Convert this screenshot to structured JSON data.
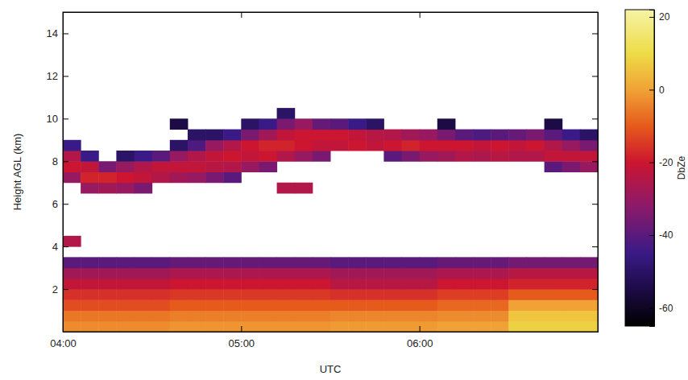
{
  "chart_data": {
    "type": "heatmap",
    "xlabel": "UTC",
    "ylabel": "Height AGL (km)",
    "xlim": [
      4,
      7
    ],
    "ylim": [
      0,
      15
    ],
    "xticks": [
      {
        "value": 4,
        "label": "04:00"
      },
      {
        "value": 5,
        "label": "05:00"
      },
      {
        "value": 6,
        "label": "06:00"
      }
    ],
    "yticks": [
      2,
      4,
      6,
      8,
      10,
      12,
      14
    ],
    "x_edges": [
      4,
      4.1,
      4.2,
      4.3,
      4.4,
      4.5,
      4.6,
      4.7,
      4.8,
      4.9,
      5,
      5.1,
      5.2,
      5.3,
      5.4,
      5.5,
      5.6,
      5.7,
      5.8,
      5.9,
      6,
      6.1,
      6.2,
      6.3,
      6.4,
      6.5,
      6.6,
      6.7,
      6.8,
      6.9,
      7
    ],
    "y_edges": [
      0,
      0.5,
      1,
      1.5,
      2,
      2.5,
      3,
      3.5,
      4,
      4.5,
      5,
      5.5,
      6,
      6.5,
      7,
      7.5,
      8,
      8.5,
      9,
      9.5,
      10,
      10.5
    ],
    "cells": [
      [
        -3,
        -6,
        -12,
        -16,
        -22,
        -28,
        -40,
        null,
        -25,
        null,
        null,
        null,
        null,
        null,
        -30,
        -20,
        -25,
        -45,
        null,
        null,
        null
      ],
      [
        -3,
        -6,
        -12,
        -16,
        -22,
        -28,
        -40,
        null,
        null,
        null,
        null,
        null,
        null,
        -30,
        -18,
        -22,
        -45,
        null,
        null,
        null,
        null
      ],
      [
        -3,
        -6,
        -12,
        -16,
        -22,
        -28,
        -40,
        null,
        null,
        null,
        null,
        null,
        null,
        -28,
        -18,
        -35,
        null,
        null,
        null,
        null,
        null
      ],
      [
        -3,
        -6,
        -12,
        -16,
        -22,
        -28,
        -40,
        null,
        null,
        null,
        null,
        null,
        null,
        -30,
        -20,
        -30,
        -50,
        null,
        null,
        null,
        null
      ],
      [
        -3,
        -6,
        -12,
        -16,
        -22,
        -28,
        -40,
        null,
        null,
        null,
        null,
        null,
        null,
        -35,
        -22,
        -25,
        -45,
        null,
        null,
        null,
        null
      ],
      [
        -3,
        -6,
        -12,
        -16,
        -22,
        -28,
        -40,
        null,
        null,
        null,
        null,
        null,
        null,
        null,
        -25,
        -22,
        -40,
        null,
        null,
        null,
        null
      ],
      [
        -2,
        -5,
        -10,
        -15,
        -20,
        -26,
        -38,
        null,
        null,
        null,
        null,
        null,
        null,
        null,
        -28,
        -22,
        -30,
        -50,
        null,
        -55,
        null
      ],
      [
        -2,
        -5,
        -10,
        -15,
        -20,
        -26,
        -38,
        null,
        null,
        null,
        null,
        null,
        null,
        null,
        -30,
        -22,
        -25,
        -42,
        -50,
        null,
        null
      ],
      [
        -2,
        -5,
        -10,
        -15,
        -20,
        -26,
        -38,
        null,
        null,
        null,
        null,
        null,
        null,
        null,
        -35,
        -24,
        -22,
        -30,
        -50,
        null,
        null
      ],
      [
        -2,
        -5,
        -10,
        -15,
        -20,
        -26,
        -38,
        null,
        null,
        null,
        null,
        null,
        null,
        null,
        -40,
        -25,
        -20,
        -25,
        -45,
        null,
        null
      ],
      [
        -2,
        -5,
        -10,
        -15,
        -20,
        -26,
        -38,
        null,
        null,
        null,
        null,
        null,
        null,
        null,
        null,
        -30,
        -22,
        -20,
        -35,
        -50,
        null
      ],
      [
        -2,
        -5,
        -10,
        -15,
        -20,
        -26,
        -38,
        null,
        null,
        null,
        null,
        null,
        null,
        null,
        null,
        -35,
        -20,
        -18,
        -28,
        -45,
        null
      ],
      [
        -2,
        -5,
        -10,
        -15,
        -20,
        -26,
        -38,
        null,
        null,
        null,
        null,
        null,
        null,
        -25,
        null,
        null,
        -25,
        -18,
        -22,
        -35,
        -50
      ],
      [
        -2,
        -5,
        -10,
        -15,
        -20,
        -26,
        -38,
        null,
        null,
        null,
        null,
        null,
        null,
        -25,
        null,
        null,
        -30,
        -20,
        -20,
        -30,
        null
      ],
      [
        -2,
        -5,
        -10,
        -15,
        -20,
        -26,
        -38,
        null,
        null,
        null,
        null,
        null,
        null,
        null,
        null,
        null,
        -35,
        -22,
        -20,
        -38,
        null
      ],
      [
        -1,
        -4,
        -10,
        -16,
        -24,
        -28,
        -40,
        null,
        null,
        null,
        null,
        null,
        null,
        null,
        null,
        null,
        null,
        -22,
        -20,
        -40,
        null
      ],
      [
        -1,
        -4,
        -10,
        -16,
        -24,
        -28,
        -40,
        null,
        null,
        null,
        null,
        null,
        null,
        null,
        null,
        null,
        null,
        -20,
        -22,
        -45,
        null
      ],
      [
        -1,
        -4,
        -10,
        -16,
        -24,
        -28,
        -40,
        null,
        null,
        null,
        null,
        null,
        null,
        null,
        null,
        null,
        null,
        -22,
        -24,
        -50,
        null
      ],
      [
        -1,
        -4,
        -10,
        -16,
        -24,
        -28,
        -40,
        null,
        null,
        null,
        null,
        null,
        null,
        null,
        null,
        null,
        -40,
        -20,
        -25,
        null,
        null
      ],
      [
        -1,
        -4,
        -10,
        -16,
        -24,
        -28,
        -40,
        null,
        null,
        null,
        null,
        null,
        null,
        null,
        null,
        null,
        -35,
        -18,
        -28,
        null,
        null
      ],
      [
        -1,
        -4,
        -10,
        -16,
        -24,
        -28,
        -40,
        null,
        null,
        null,
        null,
        null,
        null,
        null,
        null,
        null,
        -30,
        -20,
        -30,
        null,
        null
      ],
      [
        0,
        -3,
        -8,
        -14,
        -20,
        -26,
        -38,
        null,
        null,
        null,
        null,
        null,
        null,
        null,
        null,
        null,
        -28,
        -20,
        -35,
        -55,
        null
      ],
      [
        0,
        -3,
        -8,
        -14,
        -20,
        -26,
        -38,
        null,
        null,
        null,
        null,
        null,
        null,
        null,
        null,
        null,
        -25,
        -20,
        -40,
        null,
        null
      ],
      [
        0,
        -3,
        -8,
        -14,
        -20,
        -26,
        -38,
        null,
        null,
        null,
        null,
        null,
        null,
        null,
        null,
        null,
        -26,
        -22,
        -42,
        null,
        null
      ],
      [
        0,
        -3,
        -8,
        -14,
        -20,
        -26,
        -38,
        null,
        null,
        null,
        null,
        null,
        null,
        null,
        null,
        null,
        -24,
        -20,
        -40,
        null,
        null
      ],
      [
        8,
        6,
        0,
        -10,
        -18,
        -24,
        -36,
        null,
        null,
        null,
        null,
        null,
        null,
        null,
        null,
        null,
        -25,
        -22,
        -38,
        null,
        null
      ],
      [
        8,
        6,
        0,
        -10,
        -18,
        -24,
        -36,
        null,
        null,
        null,
        null,
        null,
        null,
        null,
        null,
        null,
        -25,
        -20,
        -35,
        null,
        null
      ],
      [
        8,
        6,
        0,
        -10,
        -18,
        -24,
        -36,
        null,
        null,
        null,
        null,
        null,
        null,
        null,
        null,
        -40,
        -22,
        -25,
        -40,
        -55,
        null
      ],
      [
        8,
        6,
        0,
        -10,
        -18,
        -24,
        -36,
        null,
        null,
        null,
        null,
        null,
        null,
        null,
        null,
        -35,
        -22,
        -30,
        -45,
        null,
        null
      ],
      [
        8,
        6,
        0,
        -10,
        -18,
        -24,
        -36,
        null,
        null,
        null,
        null,
        null,
        null,
        null,
        null,
        -30,
        -22,
        -35,
        -50,
        null,
        null
      ]
    ],
    "colorbar": {
      "label": "DbZe",
      "range": [
        -65,
        22
      ],
      "ticks": [
        20,
        0,
        -20,
        -40,
        -60
      ]
    }
  }
}
